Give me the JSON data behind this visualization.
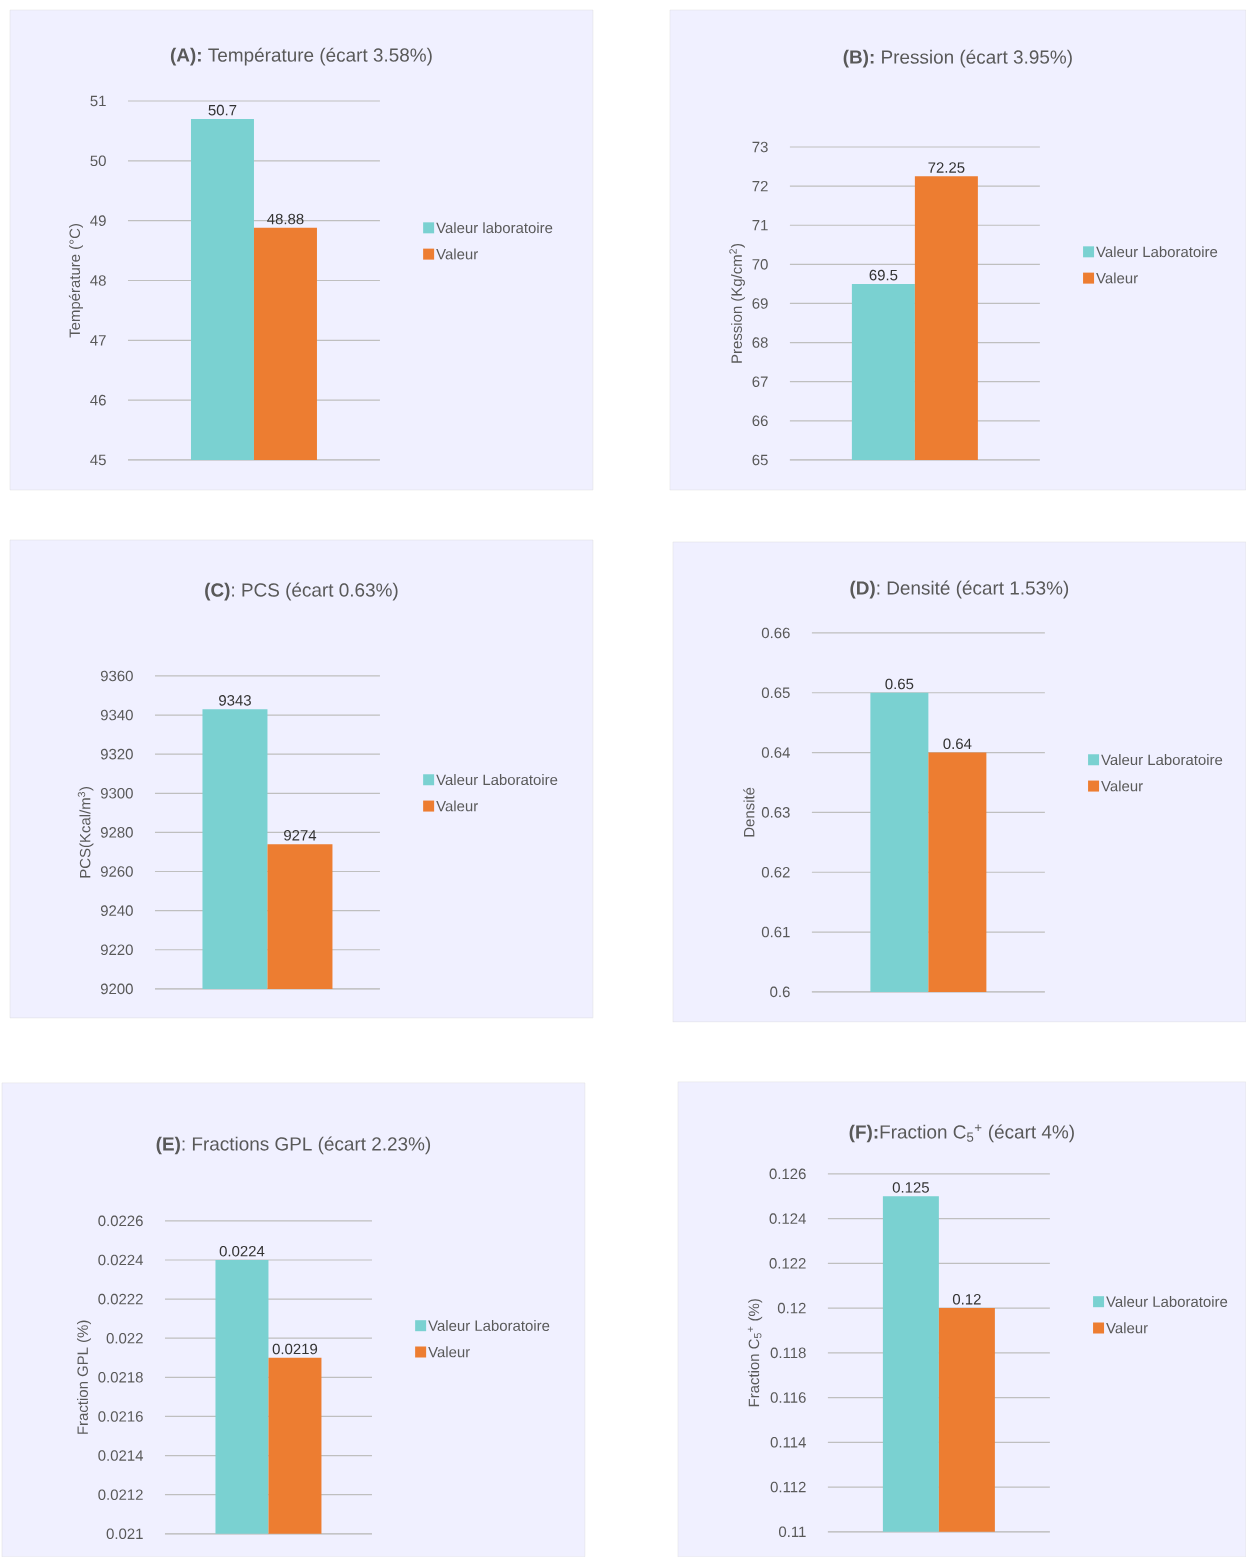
{
  "chart_data": [
    {
      "type": "bar",
      "title": "**(A):** Température (écart 3.58%)",
      "ylabel": "Température (°C)",
      "categories": [
        null
      ],
      "series": [
        {
          "name": "Valeur laboratoire",
          "color": "#7ad1d1",
          "values": [
            50.7
          ]
        },
        {
          "name": "Valeur",
          "color": "#ed7d31",
          "values": [
            48.88
          ]
        }
      ],
      "ylim": [
        45,
        51
      ],
      "yticks": [
        45,
        46,
        47,
        48,
        49,
        50,
        51
      ],
      "grid": "y",
      "legend": "right",
      "data_labels": true,
      "tick_labels": "y"
    },
    {
      "type": "bar",
      "title": "**(B):** Pression (écart 3.95%)",
      "ylabel": "Pression (Kg/cm$^{2}$)",
      "categories": [
        null
      ],
      "series": [
        {
          "name": "Valeur Laboratoire",
          "color": "#7ad1d1",
          "values": [
            69.5
          ]
        },
        {
          "name": "Valeur",
          "color": "#ed7d31",
          "values": [
            72.25
          ]
        }
      ],
      "ylim": [
        65,
        73
      ],
      "yticks": [
        65,
        66,
        67,
        68,
        69,
        70,
        71,
        72,
        73
      ],
      "grid": "y",
      "legend": "right",
      "data_labels": true,
      "tick_labels": "y"
    },
    {
      "type": "bar",
      "title": "**(C)**: PCS (écart 0.63%)",
      "ylabel": "PCS(Kcal/m$^{3}$)",
      "categories": [
        null
      ],
      "series": [
        {
          "name": "Valeur Laboratoire",
          "color": "#7ad1d1",
          "values": [
            9343
          ]
        },
        {
          "name": "Valeur",
          "color": "#ed7d31",
          "values": [
            9274
          ]
        }
      ],
      "ylim": [
        9200,
        9360
      ],
      "yticks": [
        9200,
        9220,
        9240,
        9260,
        9280,
        9300,
        9320,
        9340,
        9360
      ],
      "grid": "y",
      "legend": "right",
      "data_labels": true,
      "tick_labels": "y"
    },
    {
      "type": "bar",
      "title": "**(D)**: Densité (écart 1.53%)",
      "ylabel": "Densité",
      "categories": [
        null
      ],
      "series": [
        {
          "name": "Valeur Laboratoire",
          "color": "#7ad1d1",
          "values": [
            0.65
          ]
        },
        {
          "name": "Valeur",
          "color": "#ed7d31",
          "values": [
            0.64
          ]
        }
      ],
      "ylim": [
        0.6,
        0.66
      ],
      "yticks": [
        0.6,
        0.61,
        0.62,
        0.63,
        0.64,
        0.65,
        0.66
      ],
      "grid": "y",
      "legend": "right",
      "data_labels": true,
      "tick_labels": "y"
    },
    {
      "type": "bar",
      "title": "**(E)**: Fractions GPL  (écart 2.23%)",
      "ylabel": "Fraction GPL (%)",
      "categories": [
        null
      ],
      "series": [
        {
          "name": "Valeur Laboratoire",
          "color": "#7ad1d1",
          "values": [
            0.0224
          ]
        },
        {
          "name": "Valeur",
          "color": "#ed7d31",
          "values": [
            0.0219
          ]
        }
      ],
      "ylim": [
        0.021,
        0.0226
      ],
      "yticks": [
        0.021,
        0.0212,
        0.0214,
        0.0216,
        0.0218,
        0.022,
        0.0222,
        0.0224,
        0.0226
      ],
      "grid": "y",
      "legend": "right",
      "data_labels": true,
      "tick_labels": "y"
    },
    {
      "type": "bar",
      "title": "**(F):**Fraction C$_{5}$$^{+}$  (écart 4%)",
      "ylabel": "Fraction C$_{5}$$^{+}$ (%)",
      "categories": [
        null
      ],
      "series": [
        {
          "name": "Valeur Laboratoire",
          "color": "#7ad1d1",
          "values": [
            0.125
          ]
        },
        {
          "name": "Valeur",
          "color": "#ed7d31",
          "values": [
            0.12
          ]
        }
      ],
      "ylim": [
        0.11,
        0.126
      ],
      "yticks": [
        0.11,
        0.112,
        0.114,
        0.116,
        0.118,
        0.12,
        0.122,
        0.124,
        0.126
      ],
      "grid": "y",
      "legend": "right",
      "data_labels": true,
      "tick_labels": "y"
    }
  ]
}
